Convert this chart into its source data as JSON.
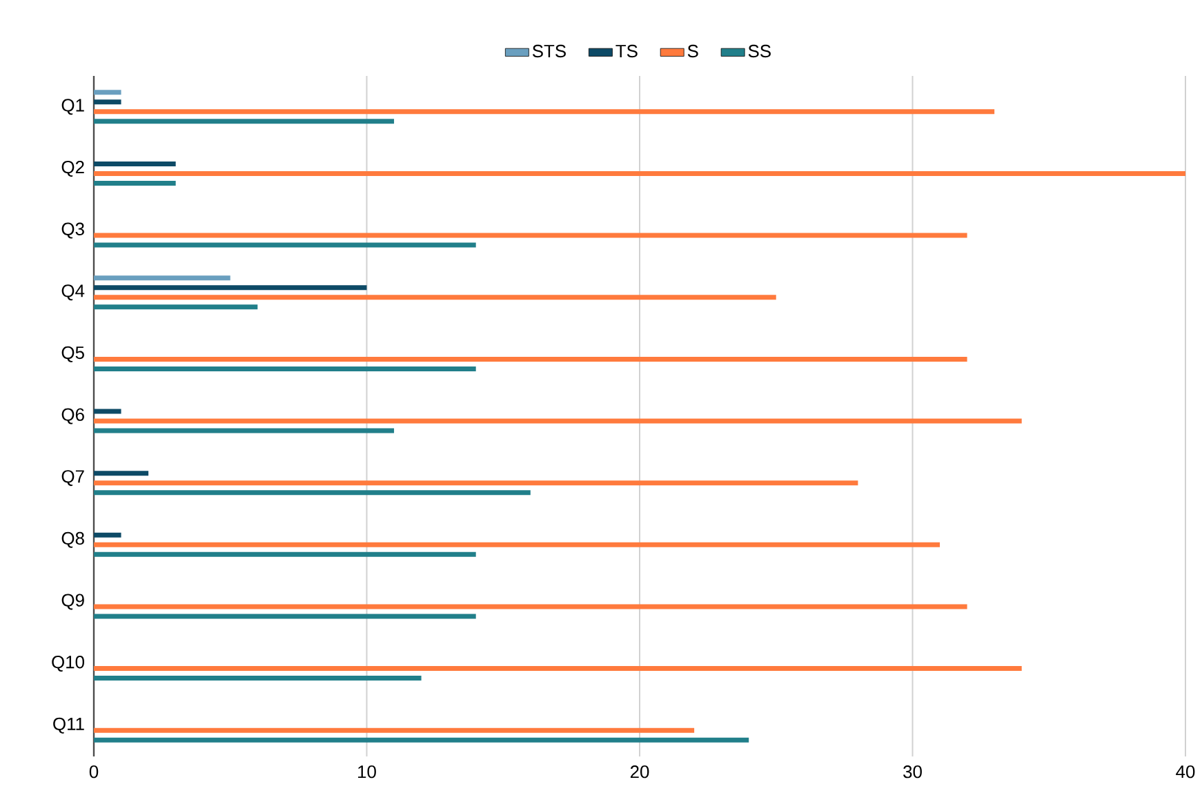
{
  "chart_data": {
    "type": "bar",
    "orientation": "horizontal",
    "categories": [
      "Q1",
      "Q2",
      "Q3",
      "Q4",
      "Q5",
      "Q6",
      "Q7",
      "Q8",
      "Q9",
      "Q10",
      "Q11"
    ],
    "series": [
      {
        "name": "STS",
        "color": "#6a9fbf",
        "values": [
          1,
          0,
          0,
          5,
          0,
          0,
          0,
          0,
          0,
          0,
          0
        ]
      },
      {
        "name": "TS",
        "color": "#0d4a66",
        "values": [
          1,
          3,
          0,
          10,
          0,
          1,
          2,
          1,
          0,
          0,
          0
        ]
      },
      {
        "name": "S",
        "color": "#ff7a3d",
        "values": [
          33,
          40,
          32,
          25,
          32,
          34,
          28,
          31,
          32,
          34,
          22
        ]
      },
      {
        "name": "SS",
        "color": "#217f8a",
        "values": [
          11,
          3,
          14,
          6,
          14,
          11,
          16,
          14,
          14,
          12,
          24
        ]
      }
    ],
    "xlim": [
      0,
      40
    ],
    "xticks": [
      0,
      10,
      20,
      30,
      40
    ],
    "grid": "x",
    "legend": "top"
  }
}
